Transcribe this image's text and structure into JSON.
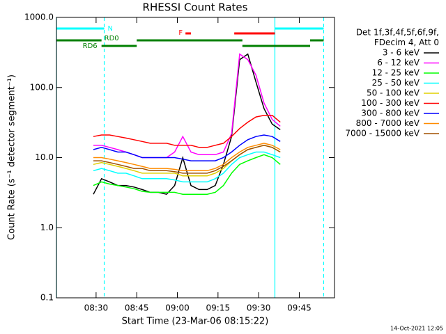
{
  "chart_data": {
    "type": "line",
    "title": "RHESSI Count Rates",
    "x_label": "Start Time (23-Mar-06 08:15:22)",
    "y_label": "Count Rate (s⁻¹ detector segment⁻¹)",
    "log_y": true,
    "xlim": [
      "08:15:22",
      "09:58"
    ],
    "xticks": [
      "08:30",
      "08:45",
      "09:00",
      "09:15",
      "09:30",
      "09:45"
    ],
    "ylim": [
      0.1,
      1000
    ],
    "yticks": [
      0.1,
      {
        "value": 1,
        "label": "1.0"
      },
      {
        "value": 10,
        "label": "10.0"
      },
      {
        "value": 100,
        "label": "100.0"
      },
      {
        "value": 1000,
        "label": "1000.0"
      }
    ],
    "legend_header": [
      "Det 1f,3f,4f,5f,6f,9f,",
      "FDecim 4, Att 0"
    ],
    "timestamp": "14-Oct-2021 12:05",
    "x": [
      "08:29",
      "08:32",
      "08:35",
      "08:38",
      "08:41",
      "08:44",
      "08:47",
      "08:50",
      "08:53",
      "08:56",
      "08:59",
      "09:02",
      "09:05",
      "09:08",
      "09:11",
      "09:14",
      "09:17",
      "09:20",
      "09:23",
      "09:26",
      "09:29",
      "09:32",
      "09:35",
      "09:38"
    ],
    "series": [
      {
        "name": "3 - 6 keV",
        "color": "#000000",
        "values": [
          3,
          5,
          4.5,
          4,
          4,
          3.8,
          3.5,
          3.2,
          3.2,
          3,
          4,
          10,
          4,
          3.5,
          3.5,
          4,
          8,
          20,
          250,
          300,
          120,
          50,
          30,
          25
        ]
      },
      {
        "name": "6 - 12 keV",
        "color": "#ff00ff",
        "values": [
          15,
          15,
          14,
          13,
          12,
          11,
          10,
          10,
          10,
          10,
          12,
          20,
          12,
          11,
          11,
          11,
          12,
          22,
          300,
          250,
          150,
          60,
          35,
          28
        ]
      },
      {
        "name": "12 - 25 keV",
        "color": "#00ff00",
        "values": [
          4,
          4.5,
          4.2,
          4,
          3.8,
          3.6,
          3.3,
          3.2,
          3.2,
          3.2,
          3.2,
          3,
          3,
          3,
          3,
          3.2,
          4,
          6,
          8,
          9,
          10,
          11,
          10,
          8
        ]
      },
      {
        "name": "25 - 50 keV",
        "color": "#00ffff",
        "values": [
          6.5,
          7,
          6.5,
          6,
          6,
          5.5,
          5,
          5,
          5,
          5,
          4.8,
          4.5,
          4.5,
          4.5,
          4.5,
          5,
          6,
          8,
          10,
          11,
          12,
          12,
          11,
          10
        ]
      },
      {
        "name": "50 - 100 keV",
        "color": "#e0d000",
        "values": [
          8,
          8.5,
          8,
          7.5,
          7,
          6.5,
          6,
          6,
          6,
          6,
          6,
          5.5,
          5.5,
          5.5,
          5.5,
          6,
          7,
          9,
          11,
          13,
          14,
          15,
          14,
          12
        ]
      },
      {
        "name": "100 - 300 keV",
        "color": "#ff0000",
        "values": [
          20,
          21,
          21,
          20,
          19,
          18,
          17,
          16,
          16,
          16,
          15,
          15,
          15,
          14,
          14,
          15,
          16,
          20,
          26,
          32,
          38,
          40,
          40,
          32
        ]
      },
      {
        "name": "300 - 800 keV",
        "color": "#0000ff",
        "values": [
          13,
          14,
          13,
          12,
          12,
          11,
          10,
          10,
          10,
          10,
          10,
          9.5,
          9,
          9,
          9,
          9,
          10,
          12,
          15,
          18,
          20,
          21,
          20,
          17
        ]
      },
      {
        "name": "800 - 7000 keV",
        "color": "#ff8c00",
        "values": [
          10,
          10,
          9.5,
          9,
          8.5,
          8,
          7.5,
          7,
          7,
          7,
          6.8,
          6.5,
          6.5,
          6.5,
          6.5,
          7,
          8,
          10,
          12,
          14,
          15,
          16,
          15,
          13
        ]
      },
      {
        "name": "7000 - 15000 keV",
        "color": "#a05000",
        "values": [
          9,
          9,
          8.5,
          8,
          7.5,
          7,
          7,
          6.5,
          6.5,
          6.5,
          6.3,
          6,
          6,
          6,
          6,
          6.5,
          7.5,
          9,
          11,
          13,
          14,
          15,
          14,
          12
        ]
      }
    ],
    "flags": [
      {
        "label": "N",
        "color": "#00ffff",
        "segments": [
          [
            "08:15:22",
            "08:33"
          ],
          [
            "09:36",
            "09:54"
          ]
        ]
      },
      {
        "label": "F",
        "color": "#ff0000",
        "segments": [
          [
            "09:03",
            "09:05"
          ],
          [
            "09:21",
            "09:36"
          ]
        ]
      },
      {
        "label": "RD0",
        "color": "#008000",
        "segments": [
          [
            "08:15:22",
            "08:32"
          ],
          [
            "08:45",
            "09:24"
          ],
          [
            "09:49",
            "09:54"
          ]
        ]
      },
      {
        "label": "RD6",
        "color": "#008000",
        "segments": [
          [
            "08:32",
            "08:45"
          ],
          [
            "09:24",
            "09:49"
          ]
        ]
      }
    ],
    "vlines": [
      {
        "x": "08:15:22",
        "color": "#00ffff",
        "dashed": false
      },
      {
        "x": "08:33",
        "color": "#00ffff",
        "dashed": true
      },
      {
        "x": "09:36",
        "color": "#00ffff",
        "dashed": false
      },
      {
        "x": "09:54",
        "color": "#00ffff",
        "dashed": true
      }
    ]
  }
}
